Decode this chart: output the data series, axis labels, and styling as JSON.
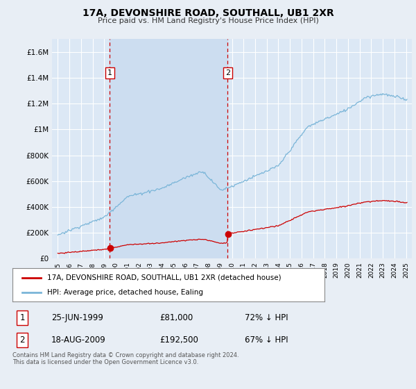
{
  "title": "17A, DEVONSHIRE ROAD, SOUTHALL, UB1 2XR",
  "subtitle": "Price paid vs. HM Land Registry's House Price Index (HPI)",
  "background_color": "#e8eef5",
  "plot_bg_color": "#dce8f5",
  "shaded_region_color": "#ccddf0",
  "grid_color": "#ffffff",
  "hpi_color": "#7ab5d8",
  "price_color": "#cc0000",
  "vline_color": "#cc0000",
  "transaction1_date": 1999.48,
  "transaction1_price": 81000,
  "transaction2_date": 2009.63,
  "transaction2_price": 192500,
  "ylim_max": 1700000,
  "yticks": [
    0,
    200000,
    400000,
    600000,
    800000,
    1000000,
    1200000,
    1400000,
    1600000
  ],
  "ytick_labels": [
    "£0",
    "£200K",
    "£400K",
    "£600K",
    "£800K",
    "£1M",
    "£1.2M",
    "£1.4M",
    "£1.6M"
  ],
  "xmin": 1994.5,
  "xmax": 2025.5,
  "legend_label1": "17A, DEVONSHIRE ROAD, SOUTHALL, UB1 2XR (detached house)",
  "legend_label2": "HPI: Average price, detached house, Ealing",
  "footer": "Contains HM Land Registry data © Crown copyright and database right 2024.\nThis data is licensed under the Open Government Licence v3.0.",
  "table_row1": [
    "1",
    "25-JUN-1999",
    "£81,000",
    "72% ↓ HPI"
  ],
  "table_row2": [
    "2",
    "18-AUG-2009",
    "£192,500",
    "67% ↓ HPI"
  ]
}
